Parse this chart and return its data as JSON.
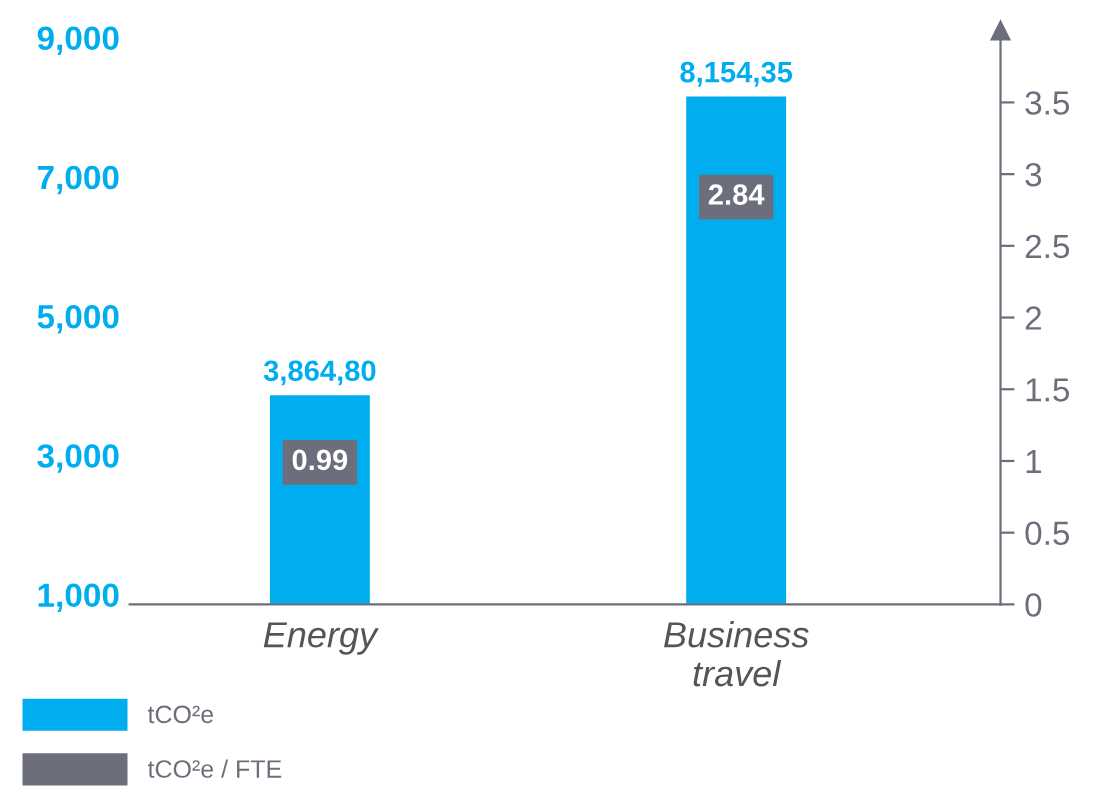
{
  "chart_data": {
    "type": "bar",
    "categories": [
      "Energy",
      "Business\ntravel"
    ],
    "series": [
      {
        "name": "tCO²e",
        "color": "#00aeef",
        "values": [
          3864.8,
          8154.35
        ],
        "value_labels": [
          "3,864,80",
          "8,154,35"
        ]
      },
      {
        "name": "tCO²e / FTE",
        "type": "scatter",
        "axis": "y2",
        "color": "#6d6e7b",
        "values": [
          0.99,
          2.84
        ],
        "value_labels": [
          "0.99",
          "2.84"
        ]
      }
    ],
    "ylim": [
      860,
      9100
    ],
    "yticks": [
      {
        "value": 1000,
        "label": "1,000"
      },
      {
        "value": 3000,
        "label": "3,000"
      },
      {
        "value": 5000,
        "label": "5,000"
      },
      {
        "value": 7000,
        "label": "7,000"
      },
      {
        "value": 9000,
        "label": "9,000"
      }
    ],
    "y2lim": [
      0,
      4.0
    ],
    "y2ticks": [
      0,
      0.5,
      1,
      1.5,
      2,
      2.5,
      3,
      3.5
    ],
    "grid": false,
    "legend": "bottom left"
  }
}
